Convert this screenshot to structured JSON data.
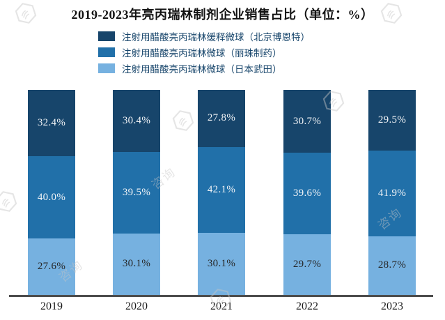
{
  "title": "2019-2023年亮丙瑞林制剂企业销售占比（单位：%）",
  "legend": {
    "items": [
      {
        "label": "注射用醋酸亮丙瑞林缓释微球（北京博恩特）",
        "color": "#17456B"
      },
      {
        "label": "注射用醋酸亮丙瑞林微球（丽珠制药）",
        "color": "#2170A9"
      },
      {
        "label": "注射用醋酸亮丙瑞林微球（日本武田）",
        "color": "#76B1E0"
      }
    ]
  },
  "watermark": {
    "text": "咨询"
  },
  "axis_color": "#4d4d4d",
  "chart_data": {
    "type": "bar",
    "stacked": true,
    "orientation": "vertical",
    "title": "2019-2023年亮丙瑞林制剂企业销售占比（单位：%）",
    "categories": [
      "2019",
      "2020",
      "2021",
      "2022",
      "2023"
    ],
    "series": [
      {
        "name": "注射用醋酸亮丙瑞林缓释微球（北京博恩特）",
        "stack_position": "top",
        "color": "#17456B",
        "label_color": "#F2F4F7",
        "values": [
          32.4,
          30.4,
          27.8,
          30.7,
          29.5
        ]
      },
      {
        "name": "注射用醋酸亮丙瑞林微球（丽珠制药）",
        "stack_position": "middle",
        "color": "#2170A9",
        "label_color": "#F2F4F7",
        "values": [
          40.0,
          39.5,
          42.1,
          39.6,
          41.9
        ]
      },
      {
        "name": "注射用醋酸亮丙瑞林微球（日本武田）",
        "stack_position": "bottom",
        "color": "#76B1E0",
        "label_color": "#262626",
        "values": [
          27.6,
          30.1,
          30.1,
          29.7,
          28.7
        ]
      }
    ],
    "xlabel": "",
    "ylabel": "",
    "ylim": [
      0,
      100
    ],
    "value_suffix": "%",
    "value_decimals": 1,
    "legend_position": "top-center",
    "grid": false,
    "y_axis_visible": false,
    "x_axis_visible": true
  }
}
